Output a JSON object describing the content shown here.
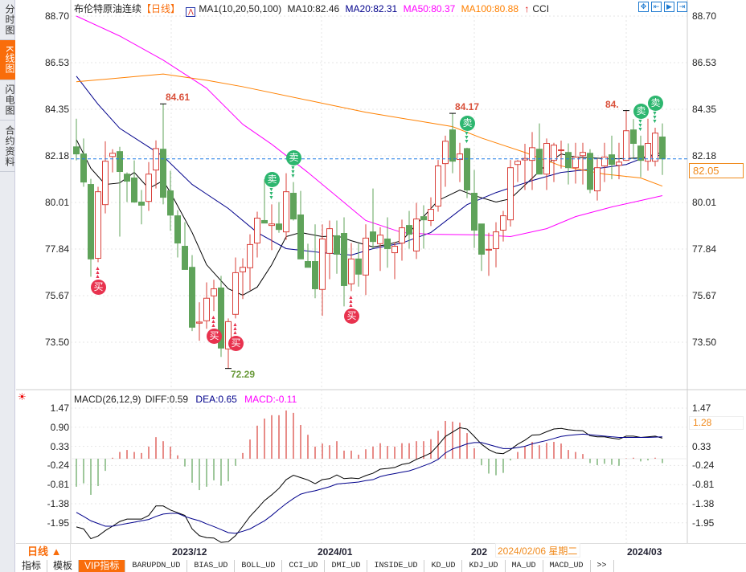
{
  "sidebar": {
    "tabs": [
      {
        "label": "分时图"
      },
      {
        "label": "K线图",
        "active": true
      },
      {
        "label": "闪电图"
      },
      {
        "label": "合约资料"
      }
    ]
  },
  "header": {
    "instrument": "布伦特原油连续",
    "period_tag": "【日线】",
    "ma_name": "MA1(10,20,50,100)",
    "ma10": "MA10:82.46",
    "ma20": "MA20:82.31",
    "ma50": "MA50:80.37",
    "ma100": "MA100:80.88",
    "cci": "CCI"
  },
  "toolbar": {
    "icons": [
      "zoom-in-icon",
      "shrink-left-icon",
      "expand-right-icon",
      "move-end-icon"
    ]
  },
  "colors": {
    "up": "#d9403a",
    "down": "#5fa35a",
    "ma10": "#000000",
    "ma20": "#00008b",
    "ma50": "#ff00ff",
    "ma100": "#ff8000",
    "last_price": "#1e7be6",
    "accent": "#f96d0b",
    "buy": "#e8324e",
    "sell": "#2db66f"
  },
  "price_axis": {
    "labels": [
      "88.70",
      "86.53",
      "84.35",
      "82.18",
      "80.01",
      "77.84",
      "75.67",
      "73.50"
    ],
    "last_price": "82.05",
    "last_value": 82.05
  },
  "annotations": {
    "high1": "84.61",
    "high2": "84.17",
    "high3": "84.",
    "low1": "72.29",
    "buy": "买",
    "sell": "卖"
  },
  "chart_data": [
    {
      "type": "candlestick",
      "ylim": [
        72.0,
        88.7
      ],
      "candles": [
        [
          82.61,
          83.92,
          81.98,
          82.28
        ],
        [
          82.28,
          83.0,
          80.75,
          80.97
        ],
        [
          80.86,
          81.12,
          76.56,
          77.39
        ],
        [
          77.42,
          80.75,
          77.24,
          80.52
        ],
        [
          79.92,
          82.87,
          79.51,
          81.94
        ],
        [
          82.16,
          82.5,
          81.42,
          82.31
        ],
        [
          82.39,
          82.61,
          78.43,
          81.46
        ],
        [
          81.34,
          81.42,
          80.04,
          81.01
        ],
        [
          81.16,
          81.98,
          80.0,
          80.04
        ],
        [
          80.04,
          80.6,
          79.0,
          79.89
        ],
        [
          80.07,
          81.9,
          79.63,
          81.34
        ],
        [
          81.53,
          82.91,
          80.67,
          82.53
        ],
        [
          82.5,
          84.61,
          79.93,
          80.26
        ],
        [
          80.56,
          81.5,
          78.7,
          79.43
        ],
        [
          79.4,
          79.66,
          77.46,
          78.13
        ],
        [
          77.98,
          79.1,
          76.9,
          76.9
        ],
        [
          77.0,
          77.57,
          74.03,
          74.21
        ],
        [
          74.4,
          75.37,
          73.58,
          74.45
        ],
        [
          74.51,
          76.3,
          74.14,
          75.56
        ],
        [
          75.67,
          76.42,
          74.96,
          76.0
        ],
        [
          76.04,
          76.6,
          72.83,
          73.24
        ],
        [
          73.2,
          74.62,
          72.29,
          74.47
        ],
        [
          74.81,
          77.46,
          74.62,
          76.75
        ],
        [
          76.79,
          77.42,
          75.52,
          77.0
        ],
        [
          76.98,
          78.54,
          75.93,
          78.06
        ],
        [
          78.13,
          79.59,
          77.46,
          79.29
        ],
        [
          79.18,
          81.1,
          79.06,
          79.06
        ],
        [
          78.95,
          79.93,
          77.8,
          79.02
        ],
        [
          79.02,
          80.04,
          78.61,
          78.76
        ],
        [
          78.65,
          81.38,
          78.28,
          80.52
        ],
        [
          80.45,
          80.97,
          79.18,
          79.25
        ],
        [
          79.44,
          80.56,
          77.39,
          77.39
        ],
        [
          77.27,
          78.1,
          77.0,
          77.0
        ],
        [
          77.27,
          79.0,
          75.56,
          76.0
        ],
        [
          75.97,
          79.0,
          74.74,
          78.32
        ],
        [
          77.65,
          79.18,
          76.45,
          78.8
        ],
        [
          78.47,
          79.18,
          76.7,
          77.61
        ],
        [
          78.58,
          79.33,
          75.18,
          76.15
        ],
        [
          76.23,
          78.13,
          75.89,
          77.39
        ],
        [
          77.39,
          78.1,
          76.1,
          76.68
        ],
        [
          76.64,
          79.0,
          75.71,
          78.36
        ],
        [
          78.65,
          80.67,
          77.87,
          78.2
        ],
        [
          78.1,
          78.87,
          76.83,
          78.5
        ],
        [
          78.32,
          79.33,
          76.98,
          77.87
        ],
        [
          77.68,
          78.17,
          76.45,
          77.98
        ],
        [
          78.13,
          79.22,
          77.31,
          78.84
        ],
        [
          78.95,
          79.63,
          77.87,
          78.54
        ],
        [
          77.76,
          80.0,
          77.39,
          79.25
        ],
        [
          79.36,
          79.89,
          77.87,
          79.21
        ],
        [
          79.18,
          80.26,
          78.92,
          79.7
        ],
        [
          79.85,
          82.0,
          79.59,
          81.72
        ],
        [
          81.83,
          83.13,
          80.75,
          82.87
        ],
        [
          83.4,
          84.17,
          81.38,
          81.94
        ],
        [
          82.02,
          82.8,
          80.97,
          82.28
        ],
        [
          82.53,
          82.57,
          80.22,
          80.6
        ],
        [
          80.45,
          81.53,
          77.9,
          78.73
        ],
        [
          79.02,
          79.02,
          76.83,
          77.61
        ],
        [
          77.8,
          78.61,
          76.6,
          77.84
        ],
        [
          77.87,
          79.1,
          77.0,
          78.65
        ],
        [
          78.73,
          79.63,
          78.2,
          79.4
        ],
        [
          79.21,
          82.0,
          78.9,
          81.64
        ],
        [
          81.79,
          82.0,
          80.97,
          81.94
        ],
        [
          82.0,
          82.75,
          80.6,
          82.07
        ],
        [
          81.98,
          83.3,
          80.6,
          82.57
        ],
        [
          82.5,
          83.7,
          81.34,
          81.34
        ],
        [
          81.34,
          83.0,
          80.6,
          82.77
        ],
        [
          81.98,
          82.8,
          80.97,
          82.69
        ],
        [
          82.47,
          82.9,
          81.6,
          82.47
        ],
        [
          82.35,
          82.77,
          80.86,
          81.64
        ],
        [
          81.64,
          82.8,
          80.9,
          82.13
        ],
        [
          82.2,
          82.8,
          80.86,
          82.35
        ],
        [
          82.31,
          82.5,
          80.45,
          80.63
        ],
        [
          80.56,
          82.05,
          80.11,
          81.64
        ],
        [
          81.72,
          82.8,
          80.97,
          82.13
        ],
        [
          82.24,
          83.13,
          81.1,
          81.79
        ],
        [
          81.75,
          82.8,
          81.1,
          81.9
        ],
        [
          81.98,
          84.3,
          81.98,
          83.36
        ],
        [
          83.4,
          83.9,
          82.1,
          82.77
        ],
        [
          82.65,
          83.13,
          81.2,
          81.98
        ],
        [
          81.94,
          83.92,
          81.5,
          82.77
        ],
        [
          81.94,
          83.5,
          81.7,
          83.25
        ],
        [
          83.07,
          83.7,
          81.3,
          82.05
        ]
      ],
      "ma": {
        "ma10": [
          [
            0,
            82.95
          ],
          [
            2,
            81.61
          ],
          [
            4,
            80.86
          ],
          [
            6,
            80.93
          ],
          [
            8,
            81.42
          ],
          [
            10,
            80.67
          ],
          [
            12,
            81.04
          ],
          [
            13,
            80.48
          ],
          [
            16,
            78.62
          ],
          [
            18,
            77.12
          ],
          [
            21,
            76.0
          ],
          [
            23,
            75.7
          ],
          [
            25,
            76.08
          ],
          [
            27,
            77.12
          ],
          [
            29,
            78.43
          ],
          [
            31,
            78.62
          ],
          [
            34,
            78.43
          ],
          [
            36,
            78.47
          ],
          [
            38,
            78.24
          ],
          [
            41,
            77.95
          ],
          [
            43,
            78.06
          ],
          [
            45,
            78.24
          ],
          [
            47,
            78.99
          ],
          [
            50,
            80.11
          ],
          [
            53,
            80.6
          ],
          [
            55,
            80.34
          ],
          [
            58,
            80.04
          ],
          [
            60,
            80.19
          ],
          [
            65,
            81.79
          ],
          [
            67,
            82.28
          ],
          [
            69,
            82.13
          ],
          [
            74,
            82.05
          ],
          [
            78,
            82.09
          ],
          [
            81,
            82.35
          ]
        ],
        "ma20": [
          [
            0,
            85.9
          ],
          [
            3,
            84.59
          ],
          [
            6,
            83.47
          ],
          [
            12,
            82.17
          ],
          [
            16,
            80.86
          ],
          [
            21,
            79.74
          ],
          [
            25,
            78.62
          ],
          [
            29,
            77.87
          ],
          [
            34,
            77.68
          ],
          [
            38,
            77.57
          ],
          [
            41,
            77.87
          ],
          [
            45,
            78.13
          ],
          [
            49,
            78.62
          ],
          [
            54,
            79.92
          ],
          [
            58,
            80.48
          ],
          [
            63,
            81.04
          ],
          [
            67,
            81.42
          ],
          [
            72,
            81.6
          ],
          [
            76,
            81.79
          ],
          [
            78,
            82.05
          ],
          [
            81,
            82.24
          ]
        ],
        "ma50": [
          [
            0,
            88.7
          ],
          [
            6,
            87.77
          ],
          [
            12,
            86.65
          ],
          [
            18,
            85.34
          ],
          [
            23,
            83.66
          ],
          [
            27,
            82.73
          ],
          [
            32,
            81.42
          ],
          [
            36,
            80.3
          ],
          [
            40,
            79.18
          ],
          [
            45,
            78.62
          ],
          [
            49,
            78.54
          ],
          [
            56,
            78.51
          ],
          [
            60,
            78.43
          ],
          [
            65,
            78.8
          ],
          [
            69,
            79.36
          ],
          [
            74,
            79.81
          ],
          [
            78,
            80.11
          ],
          [
            81,
            80.34
          ]
        ],
        "ma100": [
          [
            0,
            85.64
          ],
          [
            12,
            86.0
          ],
          [
            18,
            85.71
          ],
          [
            23,
            85.41
          ],
          [
            32,
            84.78
          ],
          [
            40,
            84.22
          ],
          [
            52,
            83.55
          ],
          [
            56,
            83.02
          ],
          [
            62,
            82.35
          ],
          [
            67,
            81.72
          ],
          [
            73,
            81.34
          ],
          [
            78,
            81.16
          ],
          [
            81,
            80.78
          ]
        ]
      },
      "signals": {
        "buy": [
          3,
          19,
          22,
          38
        ],
        "sell": [
          27,
          30,
          54,
          78,
          80
        ]
      }
    },
    {
      "type": "macd",
      "title": "MACD(26,12,9)",
      "diff_label": "DIFF:0.59",
      "dea_label": "DEA:0.65",
      "macd_label": "MACD:-0.11",
      "axis_labels": [
        "1.47",
        "0.90",
        "0.33",
        "-0.24",
        "-0.81",
        "-1.38",
        "-1.95"
      ],
      "right_highlight": "1.28",
      "ylim": [
        -2.5,
        1.6
      ],
      "macd": [
        -0.83,
        -0.73,
        -1.07,
        -0.81,
        -0.36,
        0.03,
        0.2,
        0.26,
        0.2,
        0.17,
        0.36,
        0.64,
        0.52,
        0.36,
        0.1,
        -0.23,
        -0.71,
        -0.93,
        -0.83,
        -0.64,
        -0.8,
        -0.67,
        -0.21,
        0.17,
        0.57,
        0.98,
        1.19,
        1.29,
        1.29,
        1.43,
        1.36,
        1.0,
        0.71,
        0.36,
        0.45,
        0.4,
        0.52,
        0.24,
        0.24,
        0.12,
        0.28,
        0.36,
        0.46,
        0.38,
        0.36,
        0.46,
        0.46,
        0.52,
        0.52,
        0.58,
        0.83,
        1.12,
        1.1,
        1.07,
        0.76,
        0.31,
        -0.19,
        -0.44,
        -0.49,
        -0.42,
        -0.05,
        0.2,
        0.36,
        0.5,
        0.4,
        0.47,
        0.5,
        0.45,
        0.26,
        0.2,
        0.14,
        -0.13,
        -0.19,
        -0.15,
        -0.18,
        -0.21,
        0.01,
        0.03,
        -0.08,
        -0.05,
        0.03,
        -0.13
      ],
      "diff": [
        -2.02,
        -2.08,
        -2.37,
        -2.29,
        -2.13,
        -2.0,
        -1.86,
        -1.79,
        -1.79,
        -1.79,
        -1.68,
        -1.4,
        -1.4,
        -1.52,
        -1.6,
        -1.68,
        -2.08,
        -2.28,
        -2.34,
        -2.35,
        -2.48,
        -2.46,
        -2.28,
        -2.0,
        -1.71,
        -1.48,
        -1.24,
        -1.07,
        -0.88,
        -0.62,
        -0.49,
        -0.56,
        -0.63,
        -0.74,
        -0.62,
        -0.59,
        -0.48,
        -0.59,
        -0.57,
        -0.59,
        -0.5,
        -0.43,
        -0.31,
        -0.29,
        -0.26,
        -0.17,
        -0.13,
        -0.02,
        0.07,
        0.17,
        0.4,
        0.66,
        0.79,
        0.92,
        0.88,
        0.66,
        0.43,
        0.27,
        0.17,
        0.15,
        0.27,
        0.43,
        0.55,
        0.7,
        0.71,
        0.8,
        0.88,
        0.9,
        0.86,
        0.84,
        0.83,
        0.68,
        0.65,
        0.65,
        0.61,
        0.58,
        0.67,
        0.67,
        0.63,
        0.65,
        0.67,
        0.61
      ],
      "dea": [
        -1.59,
        -1.71,
        -1.84,
        -1.92,
        -2.0,
        -2.0,
        -1.96,
        -1.92,
        -1.88,
        -1.84,
        -1.8,
        -1.71,
        -1.64,
        -1.62,
        -1.62,
        -1.71,
        -1.78,
        -1.84,
        -1.93,
        -2.01,
        -2.1,
        -2.19,
        -2.21,
        -2.15,
        -2.08,
        -1.96,
        -1.84,
        -1.68,
        -1.5,
        -1.33,
        -1.18,
        -1.05,
        -0.99,
        -0.95,
        -0.89,
        -0.83,
        -0.75,
        -0.73,
        -0.71,
        -0.69,
        -0.65,
        -0.62,
        -0.53,
        -0.48,
        -0.44,
        -0.4,
        -0.36,
        -0.29,
        -0.21,
        -0.13,
        -0.02,
        0.17,
        0.29,
        0.36,
        0.44,
        0.48,
        0.48,
        0.42,
        0.36,
        0.3,
        0.3,
        0.33,
        0.37,
        0.44,
        0.49,
        0.54,
        0.6,
        0.66,
        0.69,
        0.71,
        0.73,
        0.71,
        0.69,
        0.67,
        0.65,
        0.63,
        0.63,
        0.63,
        0.63,
        0.63,
        0.64,
        0.65
      ]
    }
  ],
  "xaxis": {
    "period": "日线 ▲",
    "labels": [
      "2023/12",
      "2024/01",
      "202",
      "2024/03"
    ],
    "crosshair_date": "2024/02/06 星期二"
  },
  "bottom_tabs": [
    {
      "label": "指标"
    },
    {
      "label": "模板"
    },
    {
      "label": "VIP指标",
      "active": true
    },
    {
      "label": "BARUPDN_UD"
    },
    {
      "label": "BIAS_UD"
    },
    {
      "label": "BOLL_UD"
    },
    {
      "label": "CCI_UD"
    },
    {
      "label": "DMI_UD"
    },
    {
      "label": "INSIDE_UD"
    },
    {
      "label": "KD_UD"
    },
    {
      "label": "KDJ_UD"
    },
    {
      "label": "MA_UD"
    },
    {
      "label": "MACD_UD"
    },
    {
      "label": ">>"
    }
  ]
}
